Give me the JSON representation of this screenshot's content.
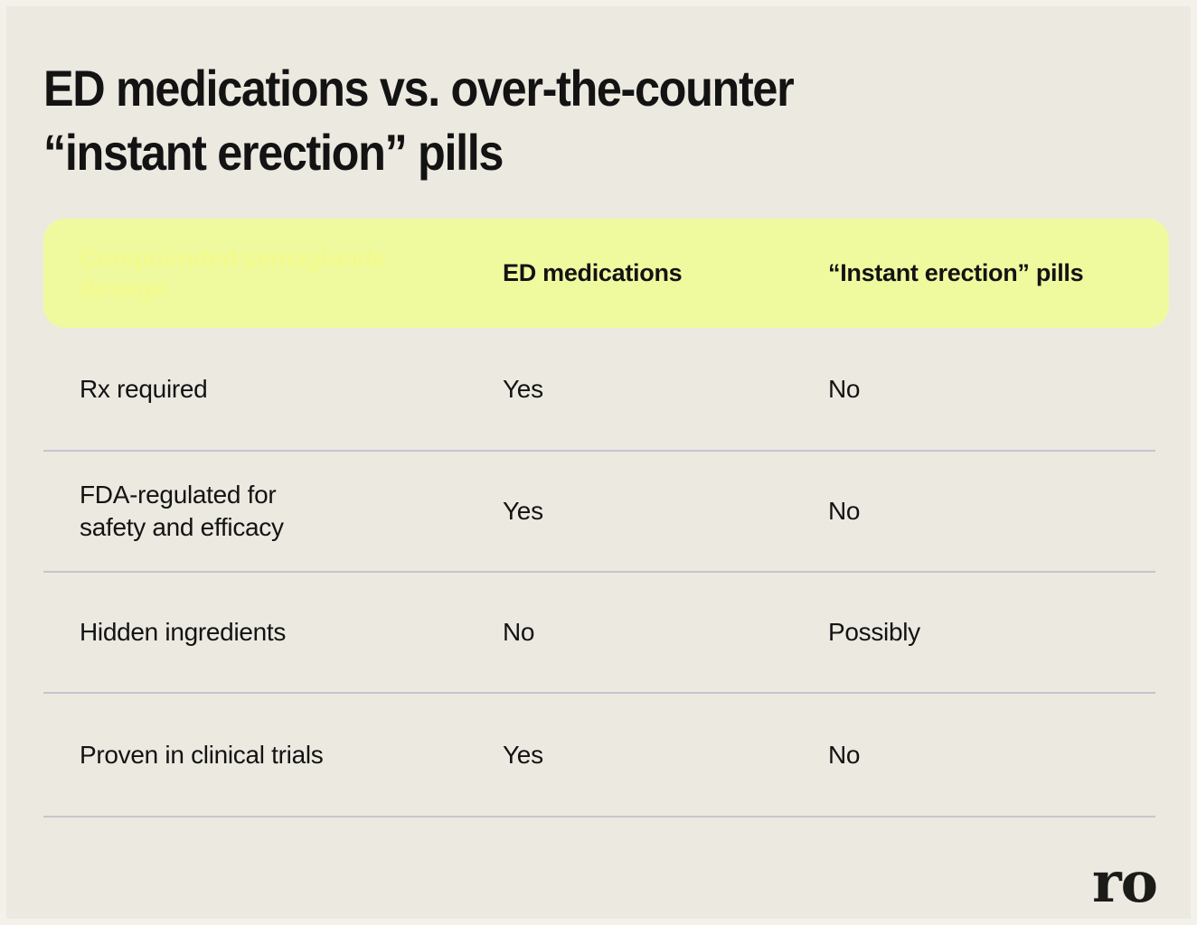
{
  "title": {
    "line1": "ED medications vs. over-the-counter",
    "line2": "“instant erection” pills"
  },
  "table": {
    "header": {
      "hidden_text_line1": "Compounded semaglutide",
      "hidden_text_line2": "dosage",
      "col_ed": "ED medications",
      "col_otc": "“Instant erection” pills"
    },
    "rows": [
      {
        "label": "Rx required",
        "ed": "Yes",
        "otc": "No"
      },
      {
        "label": "FDA-regulated for safety and efficacy",
        "ed": "Yes",
        "otc": "No"
      },
      {
        "label": "Hidden ingredients",
        "ed": "No",
        "otc": "Possibly"
      },
      {
        "label": "Proven in clinical trials",
        "ed": "Yes",
        "otc": "No"
      }
    ]
  },
  "brand": {
    "logo_text": "ro"
  },
  "colors": {
    "background": "#ECE9E1",
    "accent_yellow": "#EFFA9F",
    "hidden_text_yellow": "#F2FA8C",
    "divider": "#C5C5CF",
    "text": "#131313"
  }
}
